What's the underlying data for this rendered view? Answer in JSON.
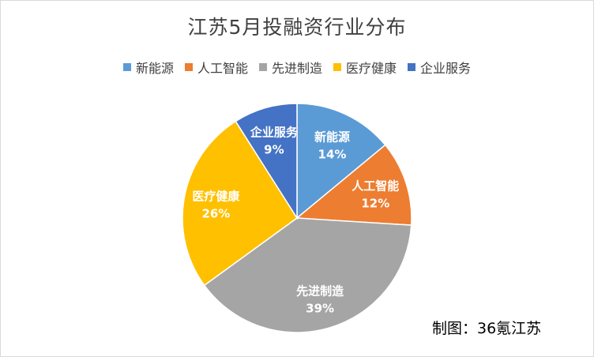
{
  "chart_data": {
    "type": "pie",
    "title": "江苏5月投融资行业分布",
    "slices": [
      {
        "label": "新能源",
        "value": 14,
        "percent_text": "14%",
        "color": "#5b9bd5"
      },
      {
        "label": "人工智能",
        "value": 12,
        "percent_text": "12%",
        "color": "#ed7d31"
      },
      {
        "label": "先进制造",
        "value": 39,
        "percent_text": "39%",
        "color": "#a5a5a5"
      },
      {
        "label": "医疗健康",
        "value": 26,
        "percent_text": "26%",
        "color": "#ffc000"
      },
      {
        "label": "企业服务",
        "value": 9,
        "percent_text": "9%",
        "color": "#4472c4"
      }
    ],
    "legend_position": "top",
    "start_angle": "12 o'clock, clockwise"
  },
  "credit": "制图：36氪江苏"
}
